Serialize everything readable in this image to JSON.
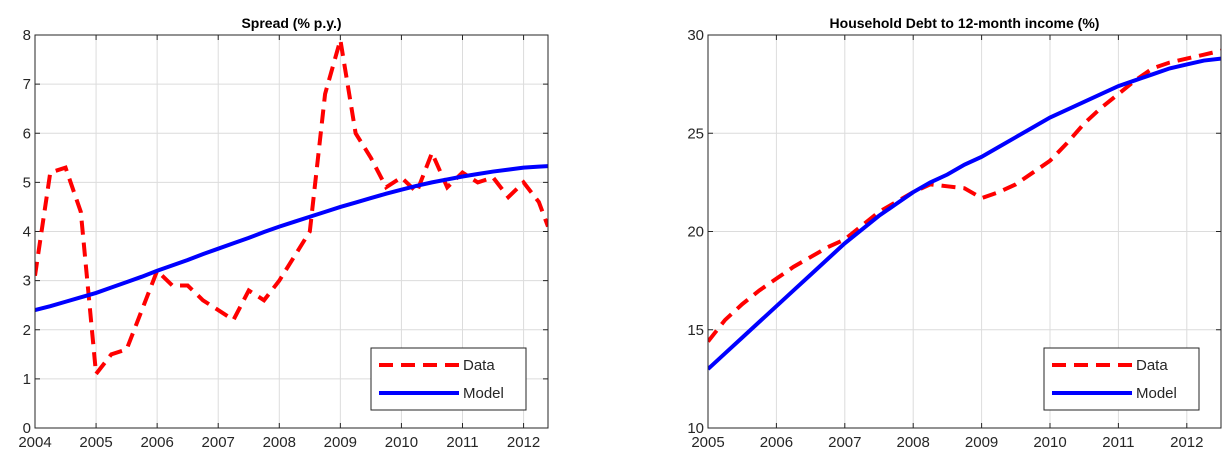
{
  "chart_data": [
    {
      "type": "line",
      "title": "Spread (% p.y.)",
      "x": [
        2004,
        2004.25,
        2004.5,
        2004.75,
        2005,
        2005.25,
        2005.5,
        2005.75,
        2006,
        2006.25,
        2006.5,
        2006.75,
        2007,
        2007.25,
        2007.5,
        2007.75,
        2008,
        2008.25,
        2008.5,
        2008.75,
        2009,
        2009.25,
        2009.5,
        2009.75,
        2010,
        2010.25,
        2010.5,
        2010.75,
        2011,
        2011.25,
        2011.5,
        2011.75,
        2012,
        2012.25,
        2012.4
      ],
      "series": [
        {
          "name": "Data",
          "color": "#ff0000",
          "dashed": true,
          "values": [
            3.1,
            5.2,
            5.3,
            4.4,
            1.1,
            1.5,
            1.6,
            2.4,
            3.2,
            2.9,
            2.9,
            2.6,
            2.4,
            2.2,
            2.8,
            2.6,
            3.0,
            3.5,
            4.0,
            6.8,
            7.9,
            6.0,
            5.5,
            4.9,
            5.1,
            4.8,
            5.6,
            4.9,
            5.2,
            5.0,
            5.1,
            4.7,
            5.0,
            4.6,
            4.1
          ]
        },
        {
          "name": "Model",
          "color": "#0000ff",
          "dashed": false,
          "values": [
            2.4,
            2.48,
            2.57,
            2.66,
            2.75,
            2.86,
            2.97,
            3.08,
            3.2,
            3.31,
            3.42,
            3.54,
            3.65,
            3.76,
            3.87,
            3.99,
            4.1,
            4.2,
            4.3,
            4.4,
            4.5,
            4.59,
            4.68,
            4.77,
            4.85,
            4.93,
            5.0,
            5.06,
            5.12,
            5.17,
            5.22,
            5.26,
            5.3,
            5.32,
            5.33
          ]
        }
      ],
      "xlim": [
        2004,
        2012.4
      ],
      "xticks": [
        2004,
        2005,
        2006,
        2007,
        2008,
        2009,
        2010,
        2011,
        2012
      ],
      "ylim": [
        0,
        8
      ],
      "yticks": [
        0,
        1,
        2,
        3,
        4,
        5,
        6,
        7,
        8
      ],
      "grid": true,
      "legend": "lower-right"
    },
    {
      "type": "line",
      "title": "Household Debt to 12-month income (%)",
      "x": [
        2005,
        2005.25,
        2005.5,
        2005.75,
        2006,
        2006.25,
        2006.5,
        2006.75,
        2007,
        2007.25,
        2007.5,
        2007.75,
        2008,
        2008.25,
        2008.5,
        2008.75,
        2009,
        2009.25,
        2009.5,
        2009.75,
        2010,
        2010.25,
        2010.5,
        2010.75,
        2011,
        2011.25,
        2011.5,
        2011.75,
        2012,
        2012.25,
        2012.5
      ],
      "series": [
        {
          "name": "Data",
          "color": "#ff0000",
          "dashed": true,
          "values": [
            14.4,
            15.5,
            16.3,
            17.0,
            17.6,
            18.2,
            18.7,
            19.2,
            19.6,
            20.3,
            21.0,
            21.5,
            22.0,
            22.4,
            22.3,
            22.2,
            21.7,
            22.0,
            22.4,
            23.0,
            23.6,
            24.5,
            25.5,
            26.3,
            27.0,
            27.7,
            28.3,
            28.6,
            28.8,
            29.0,
            29.2
          ]
        },
        {
          "name": "Model",
          "color": "#0000ff",
          "dashed": false,
          "values": [
            13.0,
            13.8,
            14.6,
            15.4,
            16.2,
            17.0,
            17.8,
            18.6,
            19.4,
            20.1,
            20.8,
            21.4,
            22.0,
            22.5,
            22.9,
            23.4,
            23.8,
            24.3,
            24.8,
            25.3,
            25.8,
            26.2,
            26.6,
            27.0,
            27.4,
            27.7,
            28.0,
            28.3,
            28.5,
            28.7,
            28.8
          ]
        }
      ],
      "xlim": [
        2005,
        2012.5
      ],
      "xticks": [
        2005,
        2006,
        2007,
        2008,
        2009,
        2010,
        2011,
        2012
      ],
      "ylim": [
        10,
        30
      ],
      "yticks": [
        10,
        15,
        20,
        25,
        30
      ],
      "grid": true,
      "legend": "lower-right"
    }
  ]
}
